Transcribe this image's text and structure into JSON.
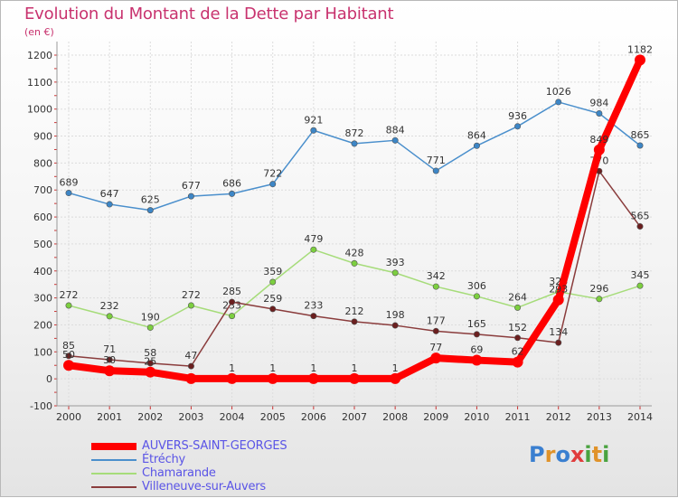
{
  "title": "Evolution du Montant de la Dette par Habitant",
  "unit": "(en €)",
  "logo": {
    "text": "Proxiti",
    "letters": [
      {
        "ch": "P",
        "color": "#3a7fd0"
      },
      {
        "ch": "r",
        "color": "#e0932a"
      },
      {
        "ch": "o",
        "color": "#3a7fd0"
      },
      {
        "ch": "x",
        "color": "#e03c3c"
      },
      {
        "ch": "i",
        "color": "#4aa340"
      },
      {
        "ch": "t",
        "color": "#e0932a"
      },
      {
        "ch": "i",
        "color": "#4aa340"
      }
    ]
  },
  "chart_data": {
    "type": "line",
    "categories": [
      "2000",
      "2001",
      "2002",
      "2003",
      "2004",
      "2005",
      "2006",
      "2007",
      "2008",
      "2009",
      "2010",
      "2011",
      "2012",
      "2013",
      "2014"
    ],
    "ylim": [
      -100,
      1200
    ],
    "yticks": [
      -100,
      0,
      100,
      200,
      300,
      400,
      500,
      600,
      700,
      800,
      900,
      1000,
      1100,
      1200
    ],
    "grid": true,
    "legend_position": "bottom-left",
    "series": [
      {
        "name": "Étréchy",
        "color": "#4a8fcc",
        "point_color": "#3d86c6",
        "values": [
          689,
          647,
          625,
          677,
          686,
          722,
          921,
          872,
          884,
          771,
          864,
          936,
          1026,
          984,
          865
        ]
      },
      {
        "name": "Chamarande",
        "color": "#a6dc7a",
        "point_color": "#7ccf3f",
        "values": [
          272,
          232,
          190,
          272,
          233,
          359,
          479,
          428,
          393,
          342,
          306,
          264,
          323,
          296,
          345
        ]
      },
      {
        "name": "Villeneuve-sur-Auvers",
        "color": "#8a3c3c",
        "point_color": "#6b1f1f",
        "values": [
          85,
          71,
          58,
          47,
          285,
          259,
          233,
          212,
          198,
          177,
          165,
          152,
          134,
          770,
          565
        ]
      },
      {
        "name": "AUVERS-SAINT-GEORGES",
        "color": "#ff0000",
        "point_color": "#ff0000",
        "values": [
          50,
          30,
          25,
          1,
          1,
          1,
          1,
          1,
          1,
          77,
          69,
          62,
          293,
          849,
          1182
        ]
      }
    ],
    "data_labels": [
      [
        "689",
        "647",
        "625",
        "677",
        "686",
        "722",
        "921",
        "872",
        "884",
        "771",
        "864",
        "936",
        "1026",
        "984",
        "865"
      ],
      [
        "272",
        "232",
        "190",
        "272",
        "233",
        "359",
        "479",
        "428",
        "393",
        "342",
        "306",
        "264",
        "323",
        "296",
        "345"
      ],
      [
        "85",
        "71",
        "58",
        "47",
        "285",
        "259",
        "233",
        "212",
        "198",
        "177",
        "165",
        "152",
        "134",
        "770",
        "565"
      ],
      [
        "50",
        "30",
        "25",
        "",
        "1",
        "1",
        "1",
        "1",
        "1",
        "77",
        "69",
        "62",
        "293",
        "849",
        "1182"
      ]
    ]
  }
}
